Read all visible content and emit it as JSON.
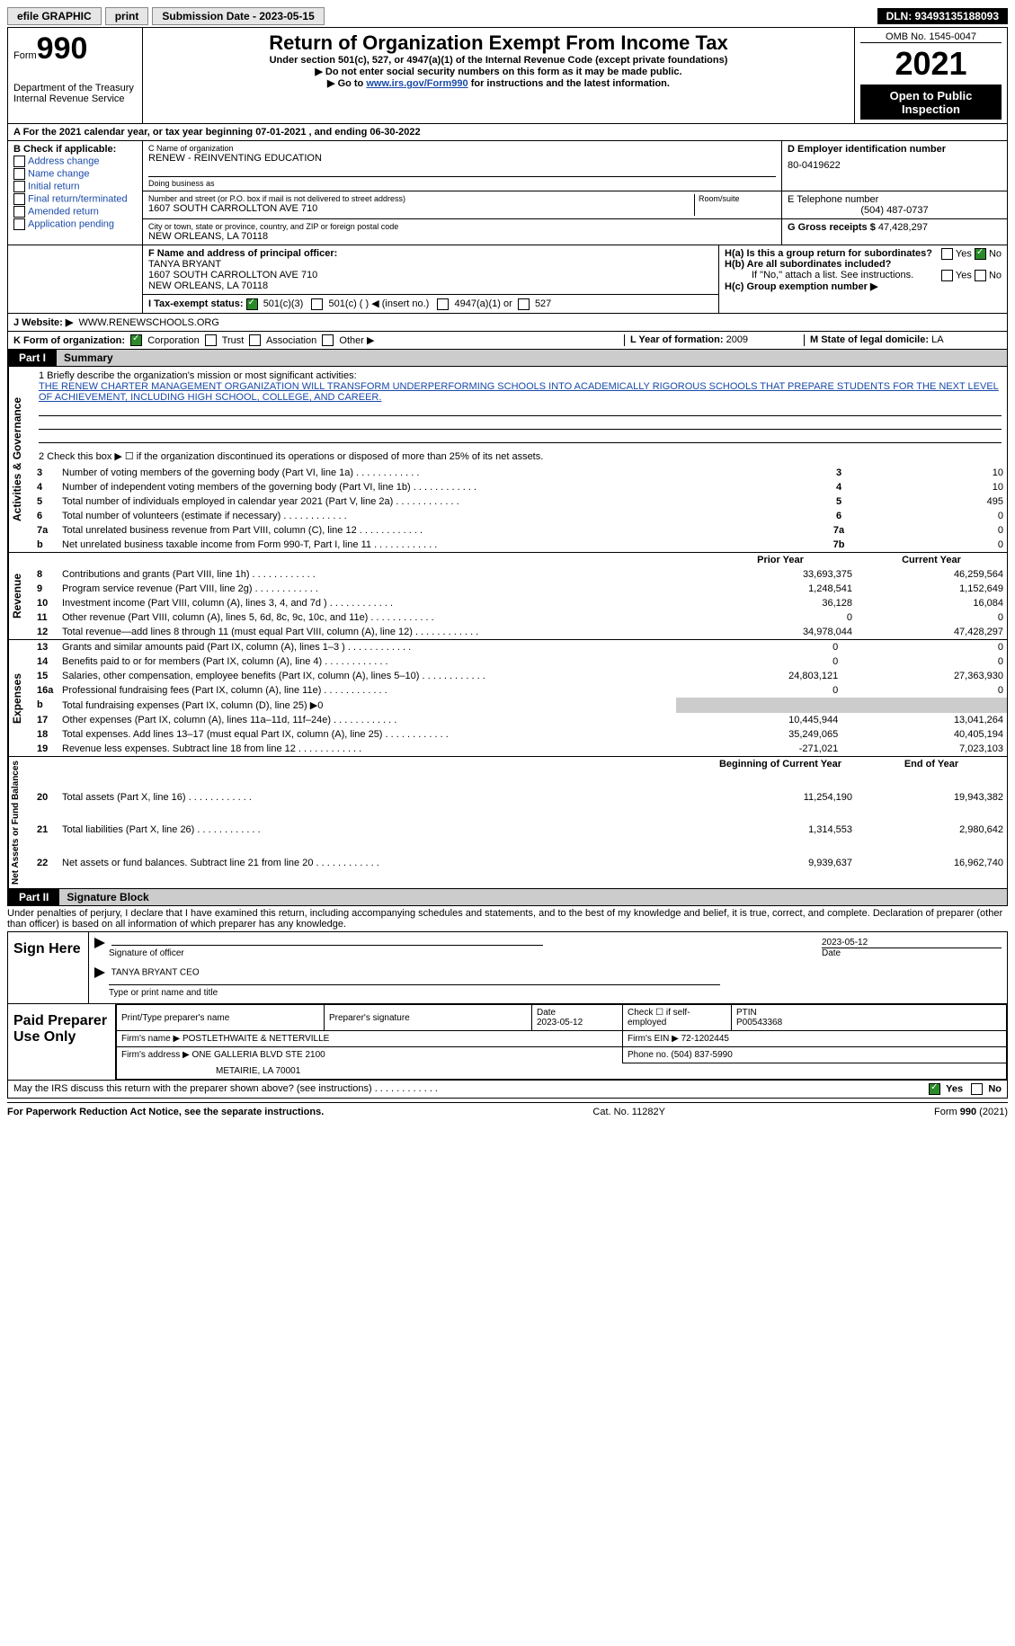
{
  "topbar": {
    "efile": "efile GRAPHIC",
    "print": "print",
    "sub_label": "Submission Date - 2023-05-15",
    "dln": "DLN: 93493135188093"
  },
  "header": {
    "form_label": "Form",
    "form_num": "990",
    "dept": "Department of the Treasury",
    "irs": "Internal Revenue Service",
    "title": "Return of Organization Exempt From Income Tax",
    "sub1": "Under section 501(c), 527, or 4947(a)(1) of the Internal Revenue Code (except private foundations)",
    "sub2": "▶ Do not enter social security numbers on this form as it may be made public.",
    "sub3_pre": "▶ Go to ",
    "sub3_link": "www.irs.gov/Form990",
    "sub3_post": " for instructions and the latest information.",
    "omb": "OMB No. 1545-0047",
    "year": "2021",
    "open": "Open to Public Inspection"
  },
  "period": {
    "line": "A For the 2021 calendar year, or tax year beginning 07-01-2021    , and ending 06-30-2022"
  },
  "boxB": {
    "title": "B Check if applicable:",
    "items": [
      "Address change",
      "Name change",
      "Initial return",
      "Final return/terminated",
      "Amended return",
      "Application pending"
    ]
  },
  "boxC": {
    "label": "C Name of organization",
    "org": "RENEW - REINVENTING EDUCATION",
    "dba": "Doing business as",
    "addr_label": "Number and street (or P.O. box if mail is not delivered to street address)",
    "addr": "1607 SOUTH CARROLLTON AVE 710",
    "room": "Room/suite",
    "city_label": "City or town, state or province, country, and ZIP or foreign postal code",
    "city": "NEW ORLEANS, LA  70118"
  },
  "boxD": {
    "label": "D Employer identification number",
    "ein": "80-0419622"
  },
  "boxE": {
    "label": "E Telephone number",
    "phone": "(504) 487-0737"
  },
  "boxG": {
    "label": "G Gross receipts $",
    "val": "47,428,297"
  },
  "boxF": {
    "label": "F Name and address of principal officer:",
    "name": "TANYA BRYANT",
    "addr1": "1607 SOUTH CARROLLTON AVE 710",
    "addr2": "NEW ORLEANS, LA  70118"
  },
  "boxH": {
    "a": "H(a)  Is this a group return for subordinates?",
    "b": "H(b)  Are all subordinates included?",
    "note": "If \"No,\" attach a list. See instructions.",
    "c": "H(c)  Group exemption number ▶",
    "yes": "Yes",
    "no": "No"
  },
  "boxI": {
    "label": "I    Tax-exempt status:",
    "o1": "501(c)(3)",
    "o2": "501(c) (  ) ◀ (insert no.)",
    "o3": "4947(a)(1) or",
    "o4": "527"
  },
  "boxJ": {
    "label": "J    Website: ▶",
    "val": "WWW.RENEWSCHOOLS.ORG"
  },
  "boxK": {
    "label": "K Form of organization:",
    "o1": "Corporation",
    "o2": "Trust",
    "o3": "Association",
    "o4": "Other ▶"
  },
  "boxL": {
    "label": "L Year of formation:",
    "val": "2009"
  },
  "boxM": {
    "label": "M State of legal domicile:",
    "val": "LA"
  },
  "part1": {
    "title": "Part I",
    "name": "Summary"
  },
  "summary": {
    "q1": "1   Briefly describe the organization's mission or most significant activities:",
    "mission": "THE RENEW CHARTER MANAGEMENT ORGANIZATION WILL TRANSFORM UNDERPERFORMING SCHOOLS INTO ACADEMICALLY RIGOROUS SCHOOLS THAT PREPARE STUDENTS FOR THE NEXT LEVEL OF ACHIEVEMENT, INCLUDING HIGH SCHOOL, COLLEGE, AND CAREER.",
    "q2": "2   Check this box ▶ ☐  if the organization discontinued its operations or disposed of more than 25% of its net assets.",
    "rows_gov": [
      {
        "n": "3",
        "t": "Number of voting members of the governing body (Part VI, line 1a)",
        "box": "3",
        "v": "10"
      },
      {
        "n": "4",
        "t": "Number of independent voting members of the governing body (Part VI, line 1b)",
        "box": "4",
        "v": "10"
      },
      {
        "n": "5",
        "t": "Total number of individuals employed in calendar year 2021 (Part V, line 2a)",
        "box": "5",
        "v": "495"
      },
      {
        "n": "6",
        "t": "Total number of volunteers (estimate if necessary)",
        "box": "6",
        "v": "0"
      },
      {
        "n": "7a",
        "t": "Total unrelated business revenue from Part VIII, column (C), line 12",
        "box": "7a",
        "v": "0"
      },
      {
        "n": "b",
        "t": "Net unrelated business taxable income from Form 990-T, Part I, line 11",
        "box": "7b",
        "v": "0"
      }
    ],
    "col_prior": "Prior Year",
    "col_current": "Current Year",
    "rows_rev": [
      {
        "n": "8",
        "t": "Contributions and grants (Part VIII, line 1h)",
        "p": "33,693,375",
        "c": "46,259,564"
      },
      {
        "n": "9",
        "t": "Program service revenue (Part VIII, line 2g)",
        "p": "1,248,541",
        "c": "1,152,649"
      },
      {
        "n": "10",
        "t": "Investment income (Part VIII, column (A), lines 3, 4, and 7d )",
        "p": "36,128",
        "c": "16,084"
      },
      {
        "n": "11",
        "t": "Other revenue (Part VIII, column (A), lines 5, 6d, 8c, 9c, 10c, and 11e)",
        "p": "0",
        "c": "0"
      },
      {
        "n": "12",
        "t": "Total revenue—add lines 8 through 11 (must equal Part VIII, column (A), line 12)",
        "p": "34,978,044",
        "c": "47,428,297"
      }
    ],
    "rows_exp": [
      {
        "n": "13",
        "t": "Grants and similar amounts paid (Part IX, column (A), lines 1–3 )",
        "p": "0",
        "c": "0"
      },
      {
        "n": "14",
        "t": "Benefits paid to or for members (Part IX, column (A), line 4)",
        "p": "0",
        "c": "0"
      },
      {
        "n": "15",
        "t": "Salaries, other compensation, employee benefits (Part IX, column (A), lines 5–10)",
        "p": "24,803,121",
        "c": "27,363,930"
      },
      {
        "n": "16a",
        "t": "Professional fundraising fees (Part IX, column (A), line 11e)",
        "p": "0",
        "c": "0"
      },
      {
        "n": "b",
        "t": "Total fundraising expenses (Part IX, column (D), line 25) ▶0",
        "p": "",
        "c": "",
        "gray": true
      },
      {
        "n": "17",
        "t": "Other expenses (Part IX, column (A), lines 11a–11d, 11f–24e)",
        "p": "10,445,944",
        "c": "13,041,264"
      },
      {
        "n": "18",
        "t": "Total expenses. Add lines 13–17 (must equal Part IX, column (A), line 25)",
        "p": "35,249,065",
        "c": "40,405,194"
      },
      {
        "n": "19",
        "t": "Revenue less expenses. Subtract line 18 from line 12",
        "p": "-271,021",
        "c": "7,023,103"
      }
    ],
    "col_boy": "Beginning of Current Year",
    "col_eoy": "End of Year",
    "rows_net": [
      {
        "n": "20",
        "t": "Total assets (Part X, line 16)",
        "p": "11,254,190",
        "c": "19,943,382"
      },
      {
        "n": "21",
        "t": "Total liabilities (Part X, line 26)",
        "p": "1,314,553",
        "c": "2,980,642"
      },
      {
        "n": "22",
        "t": "Net assets or fund balances. Subtract line 21 from line 20",
        "p": "9,939,637",
        "c": "16,962,740"
      }
    ],
    "vlabels": {
      "gov": "Activities & Governance",
      "rev": "Revenue",
      "exp": "Expenses",
      "net": "Net Assets or Fund Balances"
    }
  },
  "part2": {
    "title": "Part II",
    "name": "Signature Block",
    "penalties": "Under penalties of perjury, I declare that I have examined this return, including accompanying schedules and statements, and to the best of my knowledge and belief, it is true, correct, and complete. Declaration of preparer (other than officer) is based on all information of which preparer has any knowledge."
  },
  "sign": {
    "label": "Sign Here",
    "sig_line": "Signature of officer",
    "date": "2023-05-12",
    "date_lbl": "Date",
    "name": "TANYA BRYANT CEO",
    "name_lbl": "Type or print name and title"
  },
  "prep": {
    "label": "Paid Preparer Use Only",
    "h1": "Print/Type preparer's name",
    "h2": "Preparer's signature",
    "h3_lbl": "Date",
    "h3": "2023-05-12",
    "h4": "Check ☐ if self-employed",
    "h5_lbl": "PTIN",
    "h5": "P00543368",
    "firm_lbl": "Firm's name    ▶",
    "firm": "POSTLETHWAITE & NETTERVILLE",
    "ein_lbl": "Firm's EIN ▶",
    "ein": "72-1202445",
    "addr_lbl": "Firm's address ▶",
    "addr1": "ONE GALLERIA BLVD STE 2100",
    "addr2": "METAIRIE, LA  70001",
    "phone_lbl": "Phone no.",
    "phone": "(504) 837-5990"
  },
  "discuss": {
    "text": "May the IRS discuss this return with the preparer shown above? (see instructions)",
    "yes": "Yes",
    "no": "No"
  },
  "footer": {
    "left": "For Paperwork Reduction Act Notice, see the separate instructions.",
    "mid": "Cat. No. 11282Y",
    "right": "Form 990 (2021)"
  }
}
